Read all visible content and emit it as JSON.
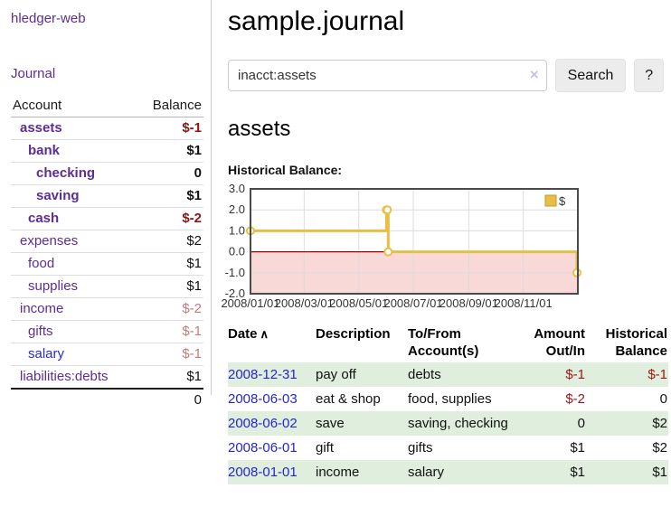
{
  "sidebar": {
    "brand": "hledger-web",
    "journal_link": "Journal",
    "accounts_table": {
      "account_header": "Account",
      "balance_header": "Balance",
      "rows": [
        {
          "name": "assets",
          "level": 1,
          "balance": "$-1",
          "bold": true,
          "blue": false
        },
        {
          "name": "bank",
          "level": 2,
          "balance": "$1",
          "bold": true,
          "blue": false
        },
        {
          "name": "checking",
          "level": 3,
          "balance": "0",
          "bold": true,
          "blue": false
        },
        {
          "name": "saving",
          "level": 3,
          "balance": "$1",
          "bold": true,
          "blue": false
        },
        {
          "name": "cash",
          "level": 2,
          "balance": "$-2",
          "bold": true,
          "blue": false
        },
        {
          "name": "expenses",
          "level": 1,
          "balance": "$2",
          "bold": false,
          "blue": false
        },
        {
          "name": "food",
          "level": 2,
          "balance": "$1",
          "bold": false,
          "blue": false
        },
        {
          "name": "supplies",
          "level": 2,
          "balance": "$1",
          "bold": false,
          "blue": false
        },
        {
          "name": "income",
          "level": 1,
          "balance": "$-2",
          "bold": false,
          "blue": false
        },
        {
          "name": "gifts",
          "level": 2,
          "balance": "$-1",
          "bold": false,
          "blue": false
        },
        {
          "name": "salary",
          "level": 2,
          "balance": "$-1",
          "bold": false,
          "blue": true
        },
        {
          "name": "liabilities:debts",
          "level": 1,
          "balance": "$1",
          "bold": false,
          "blue": false
        }
      ],
      "total": "0"
    }
  },
  "header": {
    "title": "sample.journal"
  },
  "search": {
    "query": "inacct:assets",
    "clear_icon": "×",
    "button_label": "Search",
    "help_label": "?"
  },
  "account_page": {
    "heading": "assets",
    "chart_title": "Historical Balance:"
  },
  "chart_data": {
    "type": "line",
    "step": true,
    "title": "Historical Balance",
    "legend": [
      "$"
    ],
    "legend_position": "top-right",
    "xlim": [
      "2008-01-01",
      "2009-01-01"
    ],
    "ylim": [
      -2,
      3
    ],
    "y_ticks": [
      3.0,
      2.0,
      1.0,
      0.0,
      -1.0,
      -2.0
    ],
    "x_ticks": [
      {
        "date": "2008-01-01",
        "label": "2008/01/01"
      },
      {
        "date": "2008-03-01",
        "label": "2008/03/01"
      },
      {
        "date": "2008-05-01",
        "label": "2008/05/01"
      },
      {
        "date": "2008-07-01",
        "label": "2008/07/01"
      },
      {
        "date": "2008-09-01",
        "label": "2008/09/01"
      },
      {
        "date": "2008-11-01",
        "label": "2008/11/01"
      }
    ],
    "series": [
      {
        "name": "$",
        "color": "#e7bf45",
        "points": [
          {
            "x": "2008-01-01",
            "y": 1
          },
          {
            "x": "2008-06-01",
            "y": 2
          },
          {
            "x": "2008-06-02",
            "y": 2
          },
          {
            "x": "2008-06-03",
            "y": 0
          },
          {
            "x": "2008-12-31",
            "y": -1
          }
        ]
      }
    ],
    "grid": true,
    "negative_region_fill": "#f9d8d8",
    "zero_line_color": "#990000",
    "border_color": "#4a4a4a",
    "gridline_color": "#dcdcdc"
  },
  "register_table": {
    "sort_icon": "∧",
    "headers": [
      [
        "Date",
        ""
      ],
      [
        "Description",
        ""
      ],
      [
        "To/From",
        "Account(s)"
      ],
      [
        "Amount",
        "Out/In"
      ],
      [
        "Historical",
        "Balance"
      ]
    ],
    "rows": [
      {
        "date": "2008-12-31",
        "description": "pay off",
        "accounts": "debts",
        "amount": "$-1",
        "balance": "$-1",
        "striped": true
      },
      {
        "date": "2008-06-03",
        "description": "eat & shop",
        "accounts": "food, supplies",
        "amount": "$-2",
        "balance": "0",
        "striped": false
      },
      {
        "date": "2008-06-02",
        "description": "save",
        "accounts": "saving, checking",
        "amount": "0",
        "balance": "$2",
        "striped": true
      },
      {
        "date": "2008-06-01",
        "description": "gift",
        "accounts": "gifts",
        "amount": "$1",
        "balance": "$2",
        "striped": false
      },
      {
        "date": "2008-01-01",
        "description": "income",
        "accounts": "salary",
        "amount": "$1",
        "balance": "$1",
        "striped": true
      }
    ]
  },
  "colors": {
    "link_purple": "#5b2d96",
    "link_blue": "#2626cc",
    "negative_strong": "#8e1414",
    "negative_soft": "#c47c7c",
    "table_negative": "#a31515",
    "stripe_green": "#dfeedd",
    "chart_line_gold": "#e7bf45"
  }
}
